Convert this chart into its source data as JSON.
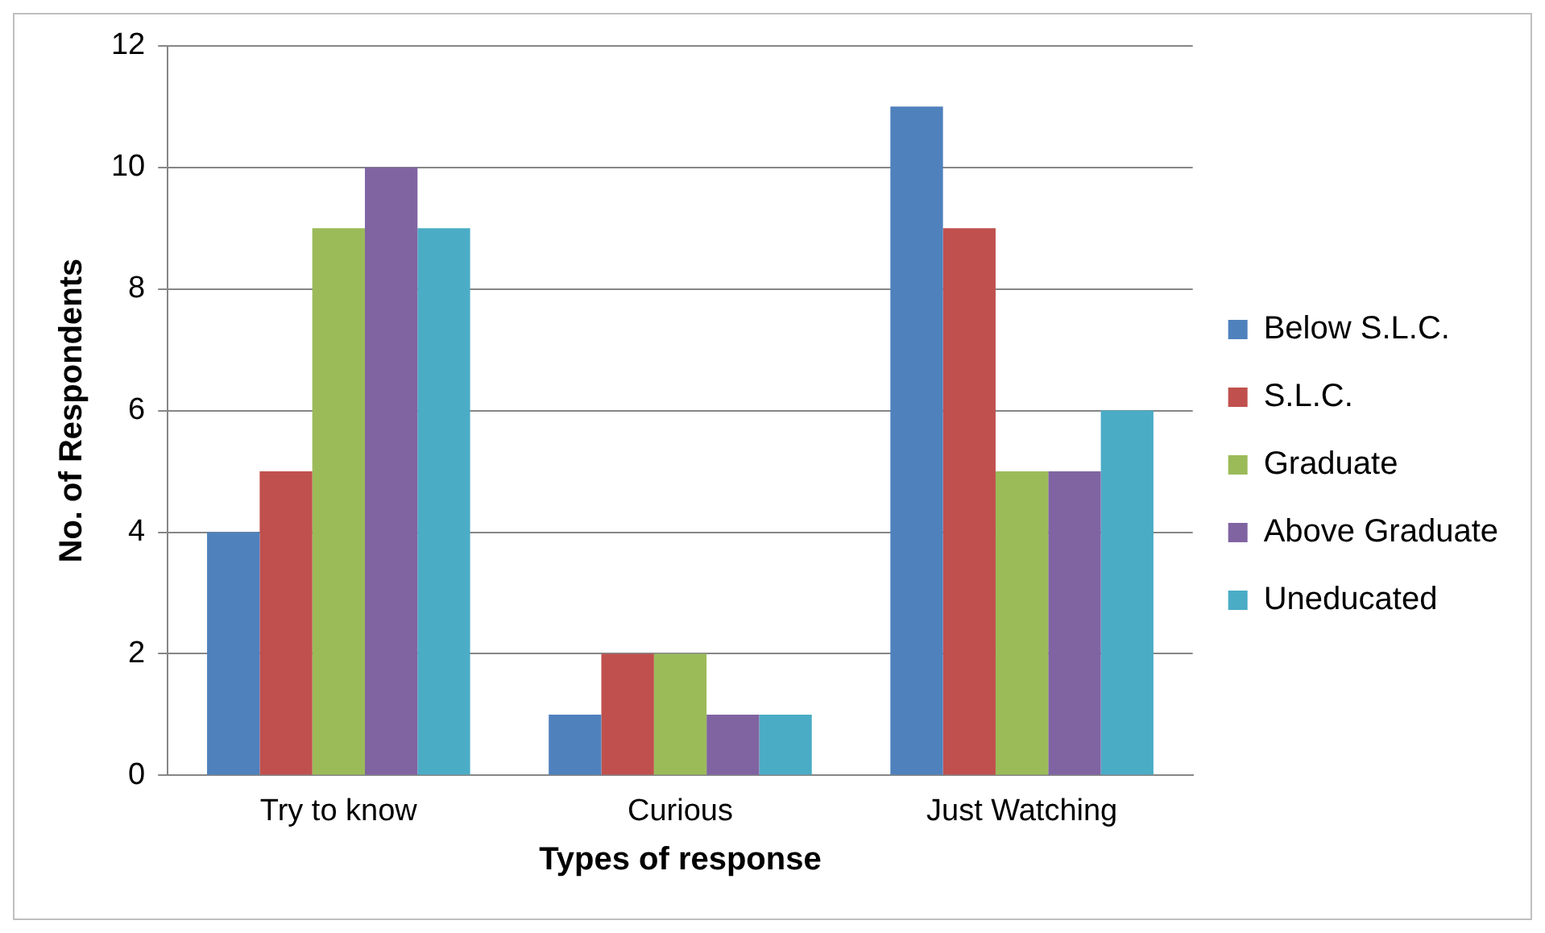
{
  "chart_data": {
    "type": "bar",
    "xlabel": "Types of response",
    "ylabel": "No. of Respondents",
    "categories": [
      "Try to know",
      "Curious",
      "Just Watching"
    ],
    "series": [
      {
        "name": "Below S.L.C.",
        "color": "#4f81bd",
        "values": [
          4,
          1,
          11
        ]
      },
      {
        "name": "S.L.C.",
        "color": "#c0504d",
        "values": [
          5,
          2,
          9
        ]
      },
      {
        "name": "Graduate",
        "color": "#9bbb59",
        "values": [
          9,
          2,
          5
        ]
      },
      {
        "name": "Above Graduate",
        "color": "#8064a2",
        "values": [
          10,
          1,
          5
        ]
      },
      {
        "name": "Uneducated",
        "color": "#4bacc6",
        "values": [
          9,
          1,
          6
        ]
      }
    ],
    "ylim": [
      0,
      12
    ],
    "yticks": [
      0,
      2,
      4,
      6,
      8,
      10,
      12
    ],
    "grid": "y",
    "legend": "right"
  }
}
